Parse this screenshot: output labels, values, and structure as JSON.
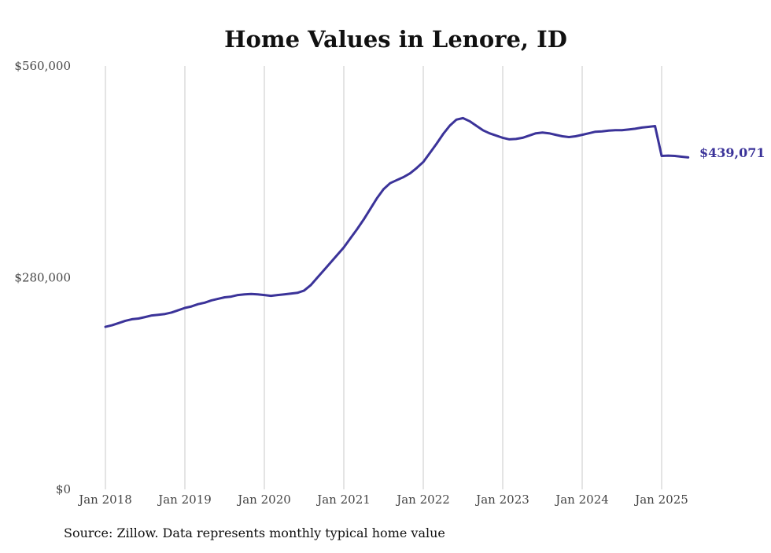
{
  "chart_data": {
    "type": "line",
    "title": "Home Values in Lenore, ID",
    "xlabel": "",
    "ylabel": "",
    "ylim": [
      0,
      560000
    ],
    "y_ticks": [
      {
        "value": 0,
        "label": "$0"
      },
      {
        "value": 280000,
        "label": "$280,000"
      },
      {
        "value": 560000,
        "label": "$560,000"
      }
    ],
    "x_ticks": [
      {
        "value": 2018.0,
        "label": "Jan 2018"
      },
      {
        "value": 2019.0,
        "label": "Jan 2019"
      },
      {
        "value": 2020.0,
        "label": "Jan 2020"
      },
      {
        "value": 2021.0,
        "label": "Jan 2021"
      },
      {
        "value": 2022.0,
        "label": "Jan 2022"
      },
      {
        "value": 2023.0,
        "label": "Jan 2023"
      },
      {
        "value": 2024.0,
        "label": "Jan 2024"
      },
      {
        "value": 2025.0,
        "label": "Jan 2025"
      }
    ],
    "grid": "vertical",
    "line_color": "#3b3399",
    "end_label": "$439,071",
    "series": [
      {
        "x": [
          "2018-01",
          "2018-02",
          "2018-03",
          "2018-04",
          "2018-05",
          "2018-06",
          "2018-07",
          "2018-08",
          "2018-09",
          "2018-10",
          "2018-11",
          "2018-12",
          "2019-01",
          "2019-02",
          "2019-03",
          "2019-04",
          "2019-05",
          "2019-06",
          "2019-07",
          "2019-08",
          "2019-09",
          "2019-10",
          "2019-11",
          "2019-12",
          "2020-01",
          "2020-02",
          "2020-03",
          "2020-04",
          "2020-05",
          "2020-06",
          "2020-07",
          "2020-08",
          "2020-09",
          "2020-10",
          "2020-11",
          "2020-12",
          "2021-01",
          "2021-02",
          "2021-03",
          "2021-04",
          "2021-05",
          "2021-06",
          "2021-07",
          "2021-08",
          "2021-09",
          "2021-10",
          "2021-11",
          "2021-12",
          "2022-01",
          "2022-02",
          "2022-03",
          "2022-04",
          "2022-05",
          "2022-06",
          "2022-07",
          "2022-08",
          "2022-09",
          "2022-10",
          "2022-11",
          "2022-12",
          "2023-01",
          "2023-02",
          "2023-03",
          "2023-04",
          "2023-05",
          "2023-06",
          "2023-07",
          "2023-08",
          "2023-09",
          "2023-10",
          "2023-11",
          "2023-12",
          "2024-01",
          "2024-02",
          "2024-03",
          "2024-04",
          "2024-05",
          "2024-06",
          "2024-07",
          "2024-08",
          "2024-09",
          "2024-10",
          "2024-11",
          "2024-12",
          "2025-01",
          "2025-02",
          "2025-03",
          "2025-04",
          "2025-05"
        ],
        "values": [
          215000,
          217000,
          220000,
          223000,
          225000,
          226000,
          228000,
          230000,
          231000,
          232000,
          234000,
          237000,
          240000,
          242000,
          245000,
          247000,
          250000,
          252000,
          254000,
          255000,
          257000,
          258000,
          258500,
          258000,
          257000,
          256000,
          257000,
          258000,
          259000,
          260000,
          263000,
          270000,
          280000,
          290000,
          300000,
          310000,
          320000,
          332000,
          344000,
          357000,
          371000,
          385000,
          397000,
          405000,
          409000,
          413000,
          418000,
          425000,
          433000,
          445000,
          457000,
          470000,
          481000,
          489000,
          491000,
          487000,
          481000,
          475000,
          471000,
          468000,
          465000,
          463000,
          463500,
          465000,
          468000,
          471000,
          472000,
          471000,
          469000,
          467000,
          466000,
          467000,
          469000,
          471000,
          473000,
          473500,
          474500,
          475000,
          475000,
          476000,
          477000,
          478500,
          479500,
          480500,
          441000,
          441500,
          441000,
          440000,
          439071
        ]
      }
    ]
  },
  "source_note": "Source: Zillow. Data represents monthly typical home value"
}
